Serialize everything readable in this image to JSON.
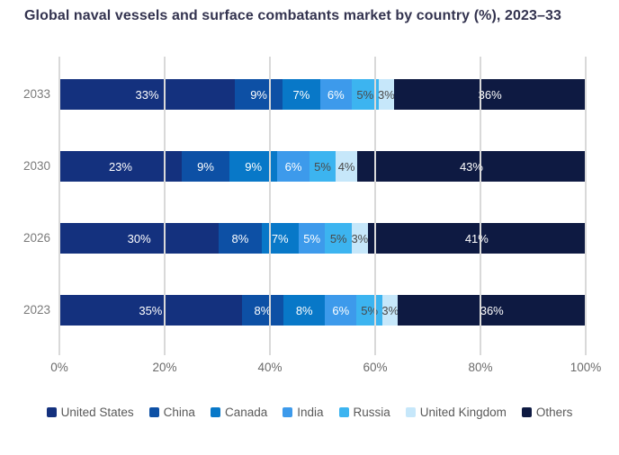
{
  "title": "Global naval vessels and surface combatants market by country (%), 2023–33",
  "colors": {
    "title": "#33334F",
    "gridline": "#D9D9D9",
    "axis_text": "#6B6B6B",
    "category_text": "#7A7A7A",
    "legend_text": "#595959",
    "label_light": "#FFFFFF",
    "label_dark": "#4A4A4A"
  },
  "chart_data": {
    "type": "bar",
    "variant": "horizontal-stacked-100",
    "title": "Global naval vessels and surface combatants market by country (%), 2023–33",
    "categories": [
      "2033",
      "2030",
      "2026",
      "2023"
    ],
    "series": [
      {
        "name": "United States",
        "color": "#14317E",
        "dark_label": false,
        "values": [
          33,
          23,
          30,
          35
        ]
      },
      {
        "name": "China",
        "color": "#0D50A5",
        "dark_label": false,
        "values": [
          9,
          9,
          8,
          8
        ]
      },
      {
        "name": "Canada",
        "color": "#0878C8",
        "dark_label": false,
        "values": [
          7,
          9,
          7,
          8
        ]
      },
      {
        "name": "India",
        "color": "#3D9AEB",
        "dark_label": false,
        "values": [
          6,
          6,
          5,
          6
        ]
      },
      {
        "name": "Russia",
        "color": "#3CB4F0",
        "dark_label": true,
        "values": [
          5,
          5,
          5,
          5
        ]
      },
      {
        "name": "United Kingdom",
        "color": "#C6E7FA",
        "dark_label": true,
        "values": [
          3,
          4,
          3,
          3
        ]
      },
      {
        "name": "Others",
        "color": "#0E1A42",
        "dark_label": false,
        "values": [
          36,
          43,
          41,
          36
        ]
      }
    ],
    "x_ticks": [
      "0%",
      "20%",
      "40%",
      "60%",
      "80%",
      "100%"
    ],
    "xlim": [
      0,
      100
    ],
    "grid": true,
    "legend_position": "bottom",
    "data_label_suffix": "%"
  }
}
